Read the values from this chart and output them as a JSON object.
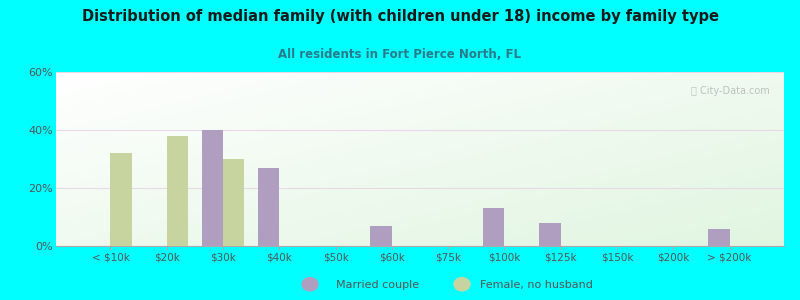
{
  "title": "Distribution of median family (with children under 18) income by family type",
  "subtitle": "All residents in Fort Pierce North, FL",
  "categories": [
    "< $10k",
    "$20k",
    "$30k",
    "$40k",
    "$50k",
    "$60k",
    "$75k",
    "$100k",
    "$125k",
    "$150k",
    "$200k",
    "> $200k"
  ],
  "married_couple": [
    0,
    0,
    40,
    27,
    0,
    7,
    0,
    13,
    8,
    0,
    0,
    6
  ],
  "female_no_husband": [
    32,
    38,
    30,
    0,
    0,
    0,
    0,
    0,
    0,
    0,
    0,
    0
  ],
  "married_color": "#b09ec0",
  "female_color": "#c8d4a0",
  "bg_color": "#00ffff",
  "title_color": "#1a1a1a",
  "subtitle_color": "#2a7a8a",
  "axis_label_color": "#555555",
  "grid_color": "#e8d8e8",
  "ylim": [
    0,
    60
  ],
  "yticks": [
    0,
    20,
    40,
    60
  ],
  "bar_width": 0.38,
  "legend_married": "Married couple",
  "legend_female": "Female, no husband"
}
